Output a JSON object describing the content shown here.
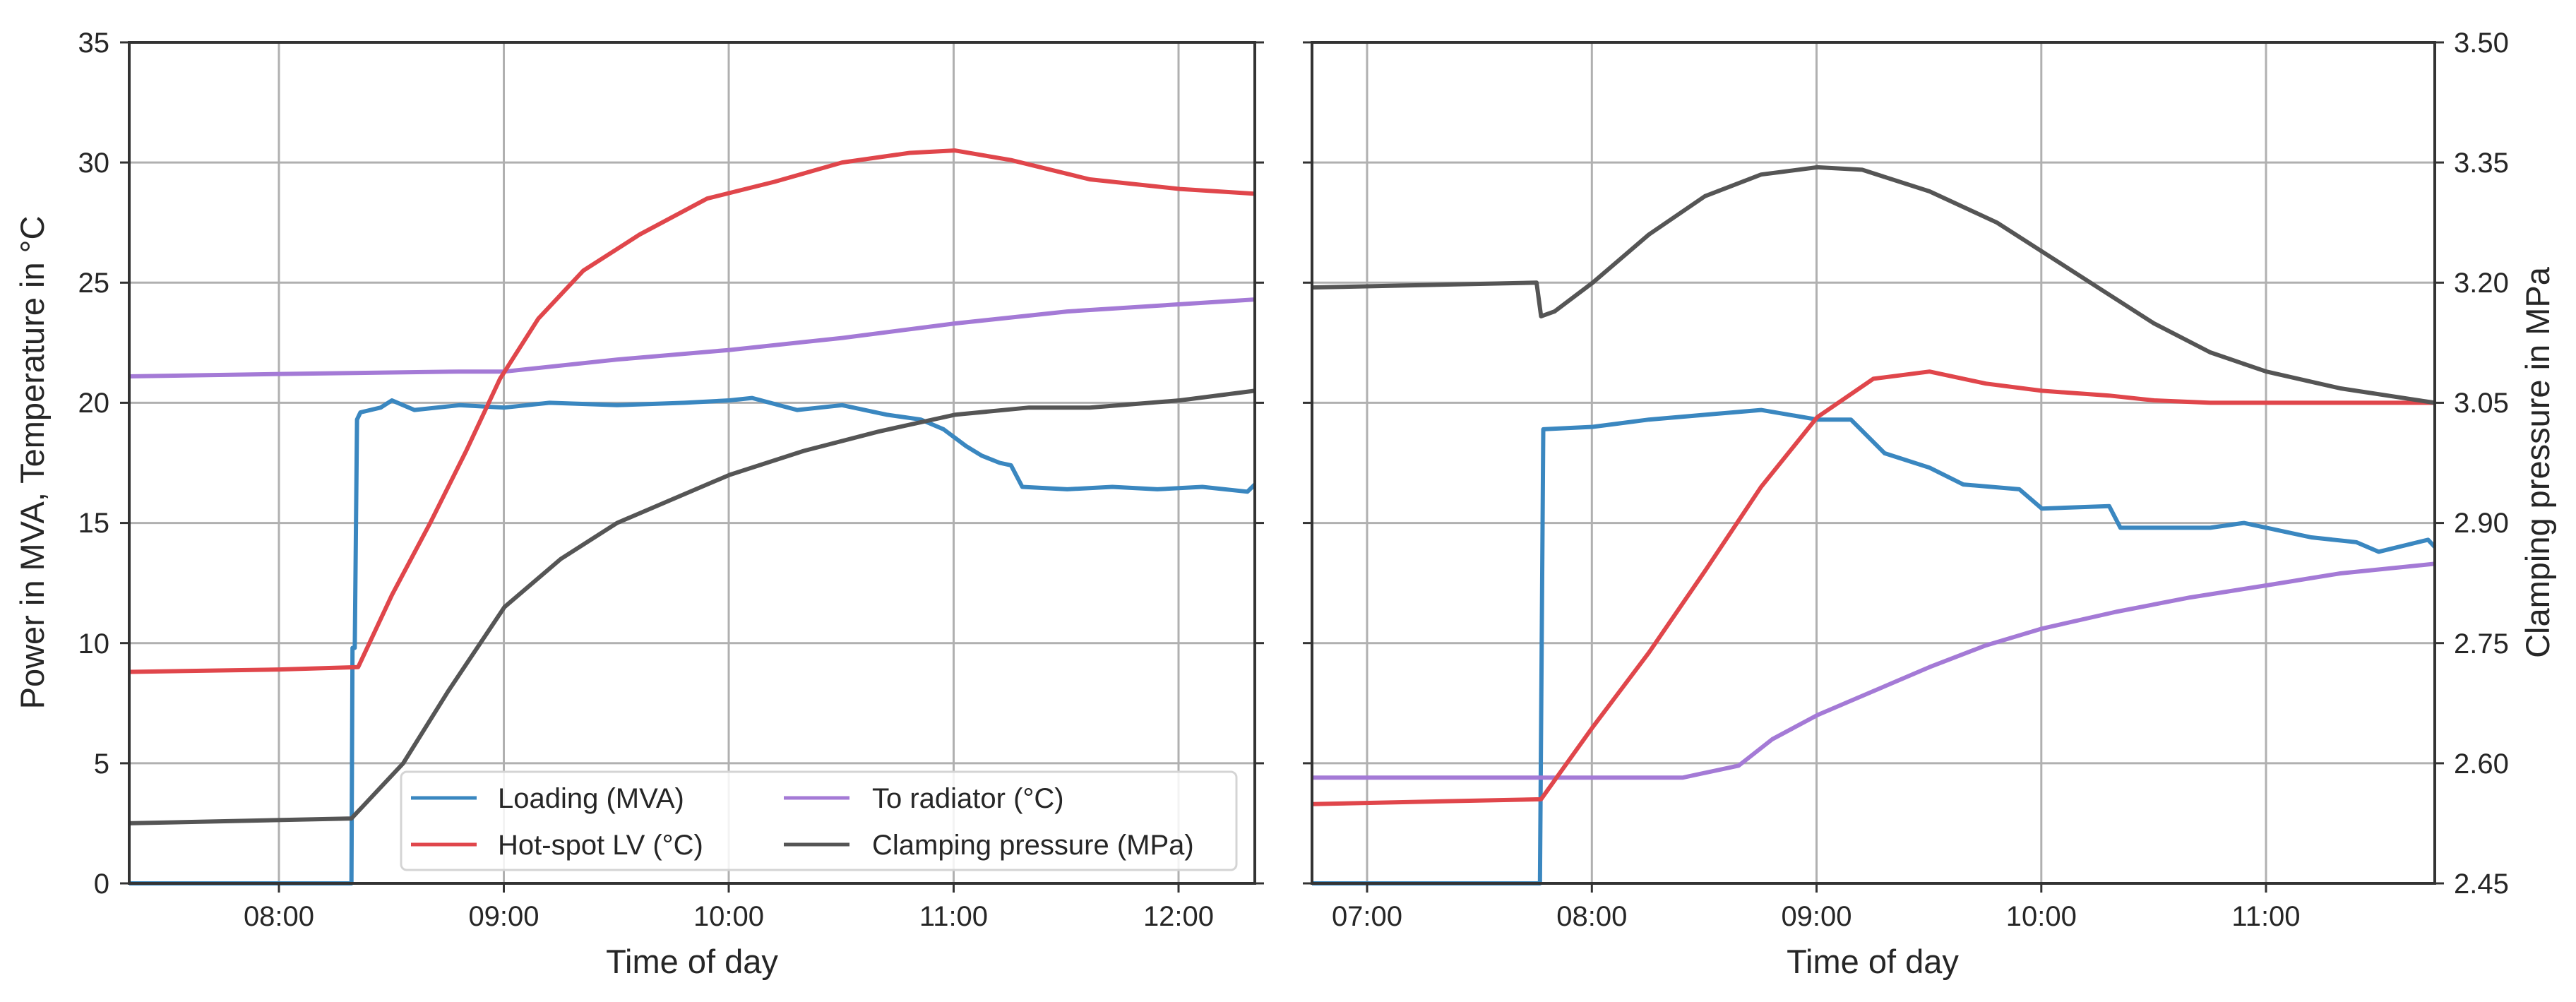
{
  "figure": {
    "left_panel": {
      "xlabel": "Time of day",
      "ylabel": "Power in MVA, Temperature in °C",
      "xticks": [
        "08:00",
        "09:00",
        "10:00",
        "11:00",
        "12:00"
      ],
      "yticks": [
        "0",
        "5",
        "10",
        "15",
        "20",
        "25",
        "30",
        "35"
      ]
    },
    "right_panel": {
      "xlabel": "Time of day",
      "ylabel_right": "Clamping pressure in MPa",
      "xticks": [
        "07:00",
        "08:00",
        "09:00",
        "10:00",
        "11:00"
      ],
      "yticks_right": [
        "2.45",
        "2.60",
        "2.75",
        "2.90",
        "3.05",
        "3.20",
        "3.35",
        "3.50"
      ]
    },
    "legend": {
      "items": [
        {
          "label": "Loading (MVA)",
          "color": "#3a87c0"
        },
        {
          "label": "To radiator (°C)",
          "color": "#a47ad6"
        },
        {
          "label": "Hot-spot LV (°C)",
          "color": "#e0464b"
        },
        {
          "label": "Clamping pressure (MPa)",
          "color": "#555555"
        }
      ]
    }
  },
  "chart_data": [
    {
      "type": "line",
      "title": "",
      "xlabel": "Time of day",
      "ylabel": "Power in MVA, Temperature in °C",
      "xlim": [
        "07:20",
        "12:20"
      ],
      "xlim_hours": [
        7.333,
        12.333
      ],
      "ylim": [
        0,
        35
      ],
      "grid": true,
      "legend_position": "lower right",
      "x_tick_labels": [
        "08:00",
        "09:00",
        "10:00",
        "11:00",
        "12:00"
      ],
      "y_tick_labels": [
        "0",
        "5",
        "10",
        "15",
        "20",
        "25",
        "30",
        "35"
      ],
      "note": "Clamping pressure plotted on shared scale: MPa = 2.45 + 0.03 × y",
      "series": [
        {
          "name": "Loading (MVA)",
          "color": "#3a87c0",
          "x": [
            7.333,
            8.32,
            8.325,
            8.335,
            8.345,
            8.36,
            8.45,
            8.5,
            8.6,
            8.8,
            9.0,
            9.2,
            9.5,
            9.8,
            10.0,
            10.1,
            10.3,
            10.5,
            10.7,
            10.85,
            10.95,
            11.05,
            11.12,
            11.2,
            11.25,
            11.3,
            11.5,
            11.7,
            11.9,
            12.1,
            12.3,
            12.333
          ],
          "y": [
            0,
            0,
            9.8,
            9.8,
            19.3,
            19.6,
            19.8,
            20.1,
            19.7,
            19.9,
            19.8,
            20.0,
            19.9,
            20.0,
            20.1,
            20.2,
            19.7,
            19.9,
            19.5,
            19.3,
            18.9,
            18.2,
            17.8,
            17.5,
            17.4,
            16.5,
            16.4,
            16.5,
            16.4,
            16.5,
            16.3,
            16.6
          ]
        },
        {
          "name": "Hot-spot LV (°C)",
          "color": "#e0464b",
          "x": [
            7.333,
            8.0,
            8.35,
            8.5,
            8.67,
            8.83,
            8.98,
            9.15,
            9.35,
            9.6,
            9.9,
            10.2,
            10.5,
            10.8,
            11.0,
            11.25,
            11.6,
            12.0,
            12.333
          ],
          "y": [
            8.8,
            8.9,
            9.0,
            12.0,
            15.0,
            18.0,
            21.0,
            23.5,
            25.5,
            27.0,
            28.5,
            29.2,
            30.0,
            30.4,
            30.5,
            30.1,
            29.3,
            28.9,
            28.7
          ]
        },
        {
          "name": "To radiator (°C)",
          "color": "#a47ad6",
          "x": [
            7.333,
            8.0,
            8.8,
            9.0,
            9.5,
            10.0,
            10.5,
            11.0,
            11.5,
            12.0,
            12.333
          ],
          "y": [
            21.1,
            21.2,
            21.3,
            21.3,
            21.8,
            22.2,
            22.7,
            23.3,
            23.8,
            24.1,
            24.3
          ]
        },
        {
          "name": "Clamping pressure (MPa)",
          "color": "#555555",
          "x": [
            7.333,
            8.32,
            8.55,
            8.75,
            9.0,
            9.25,
            9.5,
            9.75,
            10.0,
            10.33,
            10.66,
            11.0,
            11.33,
            11.6,
            12.0,
            12.333
          ],
          "y": [
            2.5,
            2.7,
            5.0,
            8.0,
            11.5,
            13.5,
            15.0,
            16.0,
            17.0,
            18.0,
            18.8,
            19.5,
            19.8,
            19.8,
            20.1,
            20.5
          ]
        }
      ]
    },
    {
      "type": "line",
      "title": "",
      "xlabel": "Time of day",
      "ylabel_right": "Clamping pressure in MPa",
      "xlim": [
        "06:45",
        "11:45"
      ],
      "xlim_hours": [
        6.75,
        11.75
      ],
      "ylim": [
        0,
        35
      ],
      "ylim_right": [
        2.45,
        3.5
      ],
      "grid": true,
      "x_tick_labels": [
        "07:00",
        "08:00",
        "09:00",
        "10:00",
        "11:00"
      ],
      "y_tick_labels_right": [
        "2.45",
        "2.60",
        "2.75",
        "2.90",
        "3.05",
        "3.20",
        "3.35",
        "3.50"
      ],
      "series": [
        {
          "name": "Loading (MVA)",
          "color": "#3a87c0",
          "x": [
            6.75,
            7.765,
            7.78,
            8.0,
            8.25,
            8.5,
            8.75,
            9.0,
            9.15,
            9.3,
            9.5,
            9.65,
            9.9,
            10.0,
            10.3,
            10.35,
            10.75,
            10.9,
            11.2,
            11.4,
            11.5,
            11.72,
            11.75
          ],
          "y": [
            0,
            0,
            18.9,
            19.0,
            19.3,
            19.5,
            19.7,
            19.3,
            19.3,
            17.9,
            17.3,
            16.6,
            16.4,
            15.6,
            15.7,
            14.8,
            14.8,
            15.0,
            14.4,
            14.2,
            13.8,
            14.3,
            14.0
          ]
        },
        {
          "name": "Hot-spot LV (°C)",
          "color": "#e0464b",
          "x": [
            6.75,
            7.77,
            8.0,
            8.25,
            8.5,
            8.75,
            9.0,
            9.25,
            9.5,
            9.75,
            10.0,
            10.3,
            10.5,
            10.75,
            11.75
          ],
          "y": [
            3.3,
            3.5,
            6.5,
            9.6,
            13.0,
            16.5,
            19.4,
            21.0,
            21.3,
            20.8,
            20.5,
            20.3,
            20.1,
            20.0,
            20.0
          ]
        },
        {
          "name": "To radiator (°C)",
          "color": "#a47ad6",
          "x": [
            6.75,
            8.4,
            8.65,
            8.8,
            9.0,
            9.25,
            9.5,
            9.75,
            10.0,
            10.33,
            10.66,
            11.0,
            11.33,
            11.75
          ],
          "y": [
            4.4,
            4.4,
            4.9,
            6.0,
            7.0,
            8.0,
            9.0,
            9.9,
            10.6,
            11.3,
            11.9,
            12.4,
            12.9,
            13.3
          ]
        },
        {
          "name": "Clamping pressure (MPa)",
          "color": "#555555",
          "x": [
            6.75,
            7.75,
            7.77,
            7.83,
            8.0,
            8.25,
            8.5,
            8.75,
            9.0,
            9.2,
            9.5,
            9.8,
            10.0,
            10.25,
            10.5,
            10.75,
            11.0,
            11.33,
            11.75
          ],
          "y": [
            24.8,
            25.0,
            23.6,
            23.8,
            25.0,
            27.0,
            28.6,
            29.5,
            29.8,
            29.7,
            28.8,
            27.5,
            26.3,
            24.8,
            23.3,
            22.1,
            21.3,
            20.6,
            20.0
          ]
        }
      ]
    }
  ]
}
